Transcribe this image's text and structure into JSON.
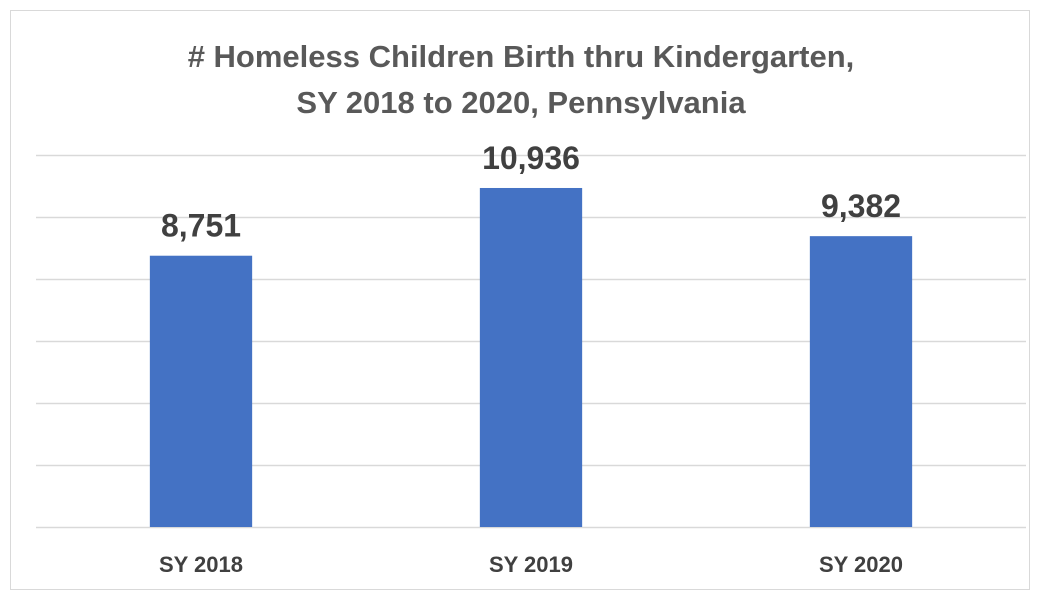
{
  "chart_data": {
    "type": "bar",
    "title_lines": [
      "# Homeless Children Birth thru Kindergarten,",
      "SY 2018 to 2020, Pennsylvania"
    ],
    "categories": [
      "SY 2018",
      "SY 2019",
      "SY 2020"
    ],
    "values": [
      8751,
      10936,
      9382
    ],
    "value_labels": [
      "8,751",
      "10,936",
      "9,382"
    ],
    "ylim": [
      0,
      12000
    ],
    "y_gridline_step": 2000,
    "grid": true,
    "y_axis_labels_visible": false,
    "legend": "none",
    "bar_color": "#4472c4",
    "grid_color": "#d9d9d9",
    "text_color": "#404040",
    "title_color": "#595959"
  }
}
